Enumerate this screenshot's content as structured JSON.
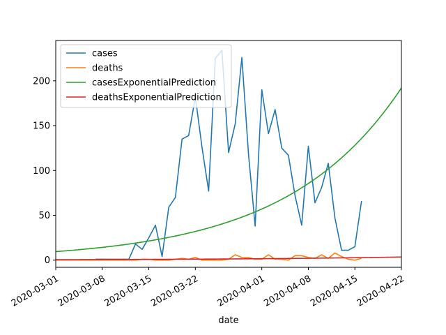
{
  "chart_data": {
    "type": "line",
    "xlabel": "date",
    "ylabel": "",
    "xlim": [
      "2020-03-01",
      "2020-04-22"
    ],
    "ylim": [
      -8,
      245
    ],
    "x_ticks": [
      "2020-03-01",
      "2020-03-08",
      "2020-03-15",
      "2020-03-22",
      "2020-04-01",
      "2020-04-08",
      "2020-04-15",
      "2020-04-22"
    ],
    "y_ticks": [
      0,
      50,
      100,
      150,
      200
    ],
    "legend_position": "top-left",
    "grid": false,
    "series": [
      {
        "name": "cases",
        "color": "#1f77b4",
        "points": [
          [
            "2020-03-07",
            1
          ],
          [
            "2020-03-08",
            1
          ],
          [
            "2020-03-09",
            1
          ],
          [
            "2020-03-10",
            1
          ],
          [
            "2020-03-11",
            1
          ],
          [
            "2020-03-12",
            1
          ],
          [
            "2020-03-13",
            18
          ],
          [
            "2020-03-14",
            12
          ],
          [
            "2020-03-15",
            25
          ],
          [
            "2020-03-16",
            39
          ],
          [
            "2020-03-17",
            4
          ],
          [
            "2020-03-18",
            59
          ],
          [
            "2020-03-19",
            70
          ],
          [
            "2020-03-20",
            135
          ],
          [
            "2020-03-21",
            139
          ],
          [
            "2020-03-22",
            182
          ],
          [
            "2020-03-23",
            126
          ],
          [
            "2020-03-24",
            77
          ],
          [
            "2020-03-25",
            225
          ],
          [
            "2020-03-26",
            234
          ],
          [
            "2020-03-27",
            120
          ],
          [
            "2020-03-28",
            152
          ],
          [
            "2020-03-29",
            226
          ],
          [
            "2020-03-30",
            118
          ],
          [
            "2020-03-31",
            38
          ],
          [
            "2020-04-01",
            190
          ],
          [
            "2020-04-02",
            141
          ],
          [
            "2020-04-03",
            168
          ],
          [
            "2020-04-04",
            125
          ],
          [
            "2020-04-05",
            117
          ],
          [
            "2020-04-06",
            72
          ],
          [
            "2020-04-07",
            39
          ],
          [
            "2020-04-08",
            127
          ],
          [
            "2020-04-09",
            64
          ],
          [
            "2020-04-10",
            81
          ],
          [
            "2020-04-11",
            108
          ],
          [
            "2020-04-12",
            47
          ],
          [
            "2020-04-13",
            11
          ],
          [
            "2020-04-14",
            11
          ],
          [
            "2020-04-15",
            15
          ],
          [
            "2020-04-16",
            66
          ]
        ]
      },
      {
        "name": "deaths",
        "color": "#ff7f0e",
        "points": [
          [
            "2020-03-01",
            0
          ],
          [
            "2020-03-02",
            0
          ],
          [
            "2020-03-07",
            0
          ],
          [
            "2020-03-08",
            0
          ],
          [
            "2020-03-09",
            0
          ],
          [
            "2020-03-10",
            0
          ],
          [
            "2020-03-11",
            0
          ],
          [
            "2020-03-12",
            0
          ],
          [
            "2020-03-13",
            0
          ],
          [
            "2020-03-14",
            1
          ],
          [
            "2020-03-15",
            1
          ],
          [
            "2020-03-16",
            0
          ],
          [
            "2020-03-17",
            0
          ],
          [
            "2020-03-18",
            0
          ],
          [
            "2020-03-19",
            1
          ],
          [
            "2020-03-20",
            2
          ],
          [
            "2020-03-21",
            1
          ],
          [
            "2020-03-22",
            3
          ],
          [
            "2020-03-23",
            0
          ],
          [
            "2020-03-24",
            0
          ],
          [
            "2020-03-25",
            0
          ],
          [
            "2020-03-26",
            0
          ],
          [
            "2020-03-27",
            1
          ],
          [
            "2020-03-28",
            6
          ],
          [
            "2020-03-29",
            3
          ],
          [
            "2020-03-30",
            3
          ],
          [
            "2020-03-31",
            1
          ],
          [
            "2020-04-01",
            1
          ],
          [
            "2020-04-02",
            6
          ],
          [
            "2020-04-03",
            1
          ],
          [
            "2020-04-04",
            1
          ],
          [
            "2020-04-05",
            0
          ],
          [
            "2020-04-06",
            5
          ],
          [
            "2020-04-07",
            5
          ],
          [
            "2020-04-08",
            3
          ],
          [
            "2020-04-09",
            2
          ],
          [
            "2020-04-10",
            6
          ],
          [
            "2020-04-11",
            2
          ],
          [
            "2020-04-12",
            8
          ],
          [
            "2020-04-13",
            4
          ],
          [
            "2020-04-14",
            1
          ],
          [
            "2020-04-15",
            0
          ],
          [
            "2020-04-16",
            2
          ]
        ]
      },
      {
        "name": "casesExponentialPrediction",
        "color": "#2ca02c",
        "exponential": {
          "start": "2020-03-01",
          "end": "2020-04-22",
          "y_start": 9.5,
          "y_end": 192
        }
      },
      {
        "name": "deathsExponentialPrediction",
        "color": "#d62728",
        "exponential": {
          "start": "2020-03-01",
          "end": "2020-04-22",
          "y_start": 0.5,
          "y_end": 3.5
        }
      }
    ]
  }
}
